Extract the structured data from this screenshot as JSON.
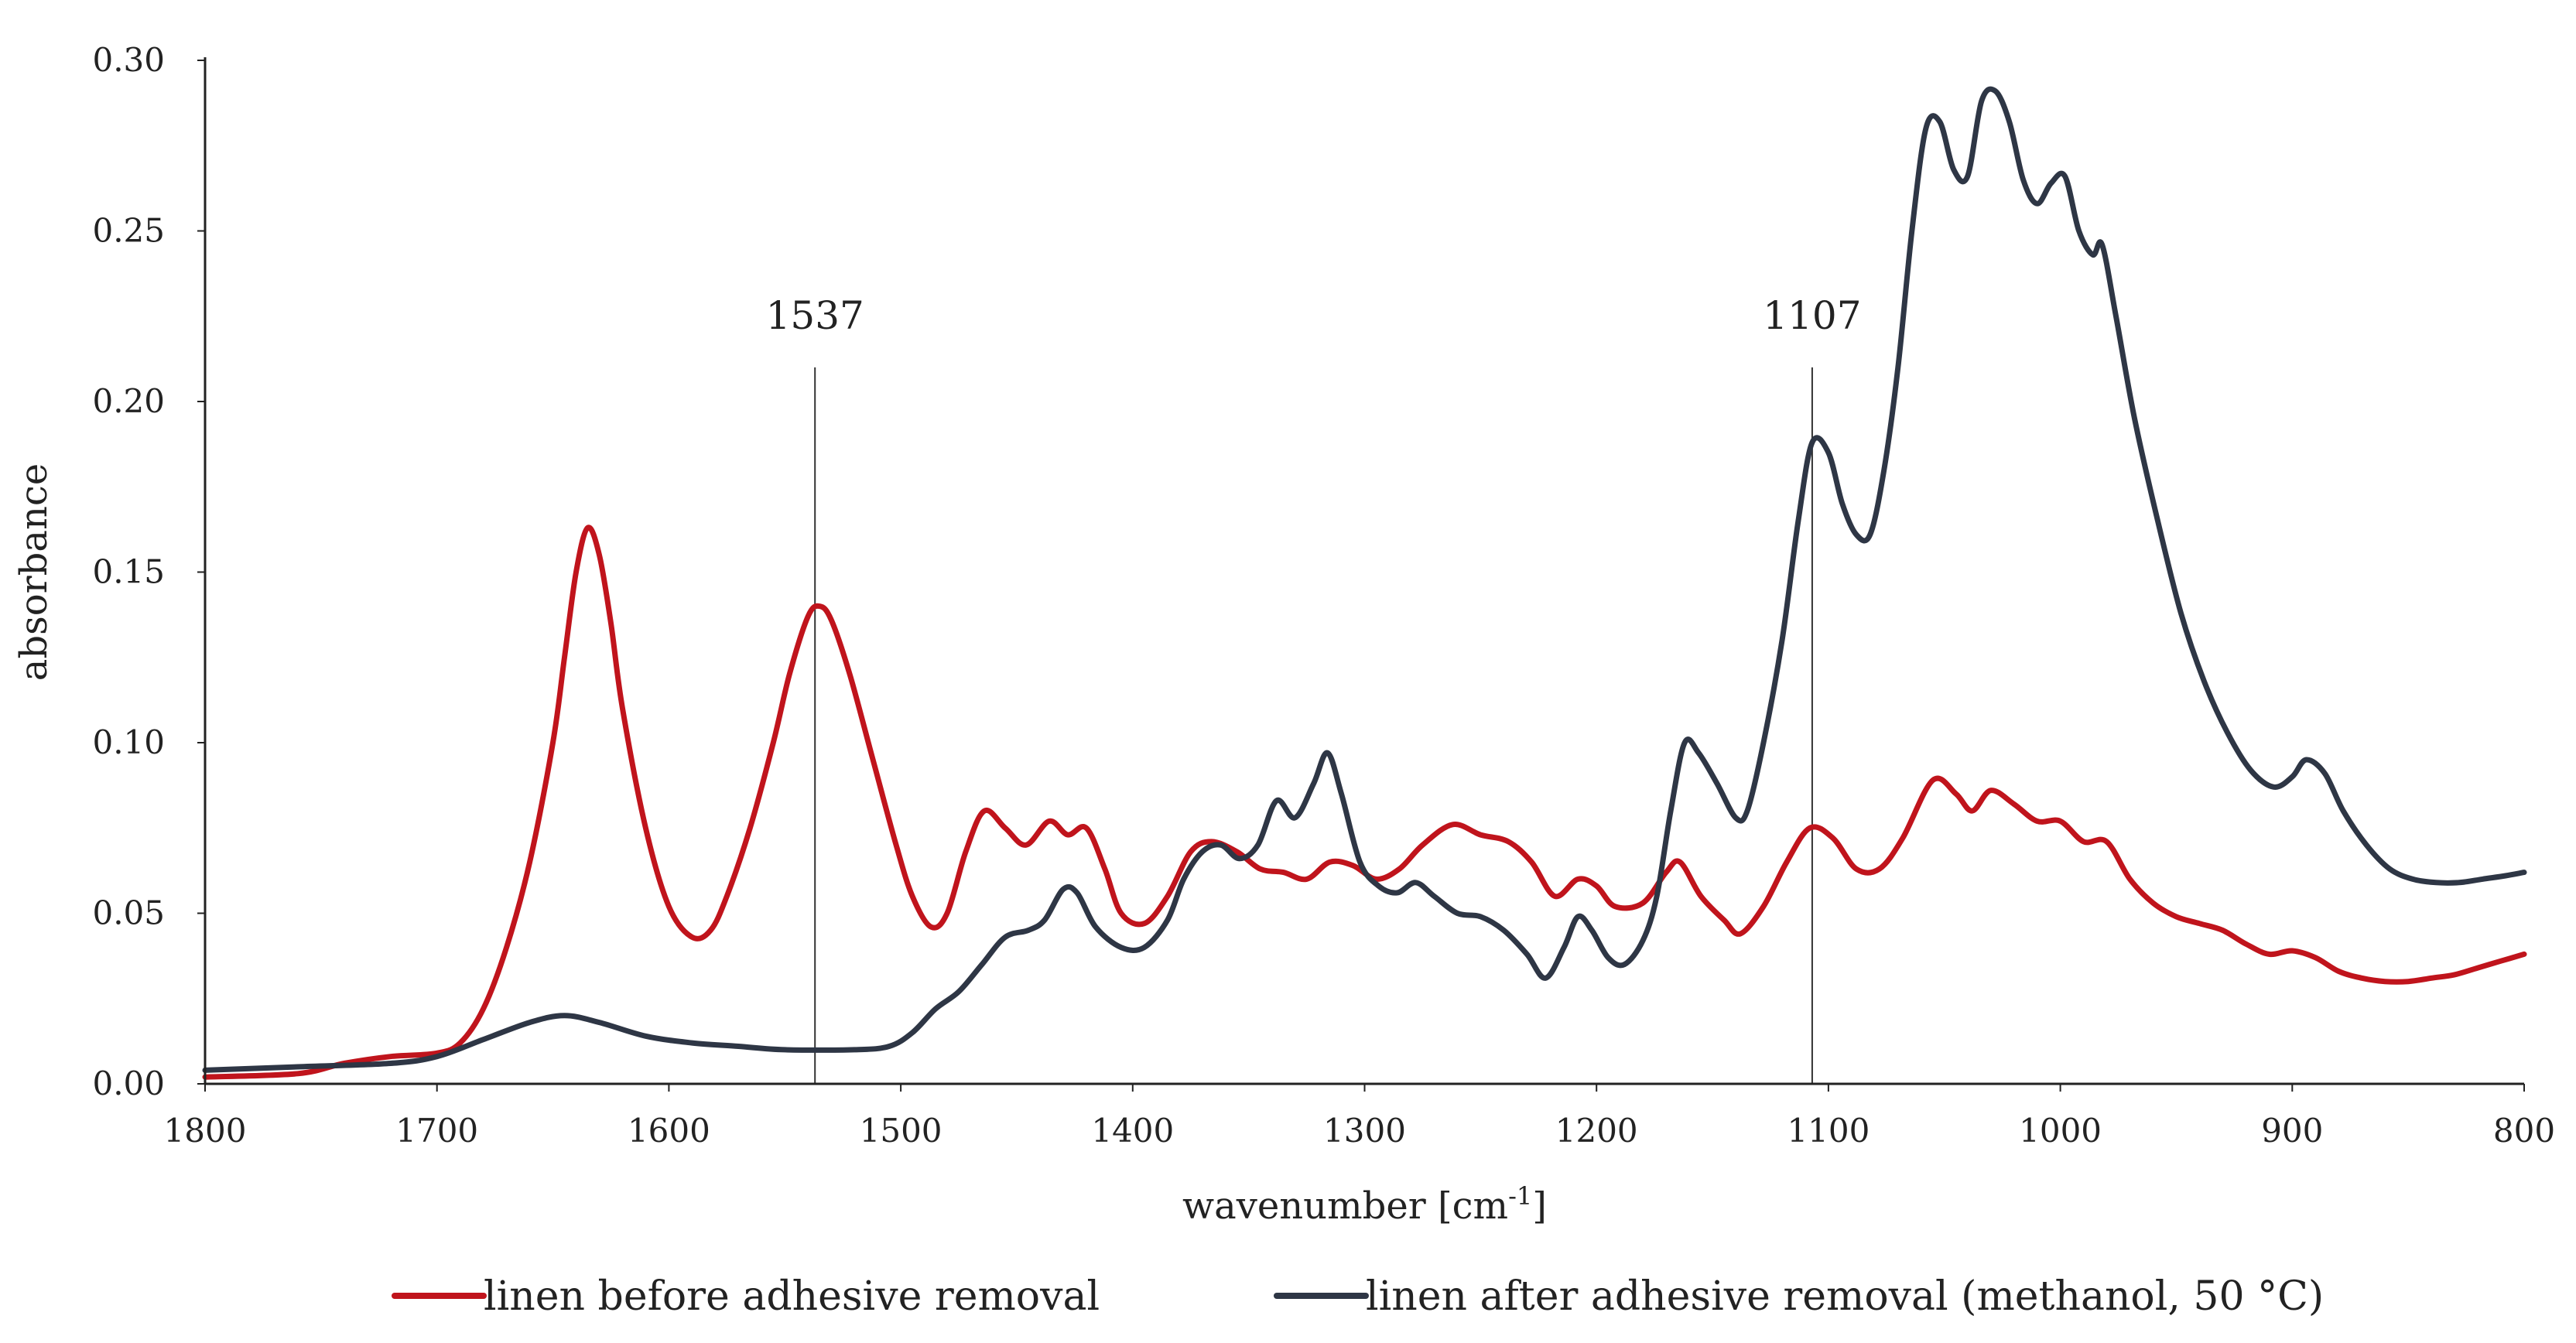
{
  "chart_data": {
    "type": "line",
    "title": "",
    "xlabel": "wavenumber [cm",
    "xlabel_sup": "-1",
    "xlabel_close": "]",
    "ylabel": "absorbance",
    "xlim": [
      1800,
      800
    ],
    "x_reversed": true,
    "ylim": [
      0,
      0.3
    ],
    "grid": false,
    "legend_position": "bottom",
    "xticks": [
      1800,
      1700,
      1600,
      1500,
      1400,
      1300,
      1200,
      1100,
      1000,
      900,
      800
    ],
    "xtick_labels": [
      "1800",
      "1700",
      "1600",
      "1500",
      "1400",
      "1300",
      "1200",
      "1100",
      "1000",
      "900",
      "800"
    ],
    "yticks": [
      0,
      0.05,
      0.1,
      0.15,
      0.2,
      0.25,
      0.3
    ],
    "ytick_labels": [
      "0.00",
      "0.05",
      "0.10",
      "0.15",
      "0.20",
      "0.25",
      "0.30"
    ],
    "annotations": [
      {
        "x": 1537,
        "label": "1537",
        "y_top": 0.21
      },
      {
        "x": 1107,
        "label": "1107",
        "y_top": 0.21
      }
    ],
    "series": [
      {
        "name": "linen before adhesive removal",
        "color": "#c0141c",
        "points": [
          [
            1800,
            0.002
          ],
          [
            1760,
            0.003
          ],
          [
            1740,
            0.006
          ],
          [
            1720,
            0.008
          ],
          [
            1700,
            0.009
          ],
          [
            1690,
            0.012
          ],
          [
            1680,
            0.022
          ],
          [
            1670,
            0.04
          ],
          [
            1660,
            0.065
          ],
          [
            1650,
            0.1
          ],
          [
            1645,
            0.125
          ],
          [
            1640,
            0.15
          ],
          [
            1635,
            0.163
          ],
          [
            1630,
            0.155
          ],
          [
            1625,
            0.135
          ],
          [
            1620,
            0.11
          ],
          [
            1610,
            0.075
          ],
          [
            1600,
            0.052
          ],
          [
            1590,
            0.043
          ],
          [
            1582,
            0.045
          ],
          [
            1575,
            0.055
          ],
          [
            1565,
            0.075
          ],
          [
            1555,
            0.1
          ],
          [
            1548,
            0.12
          ],
          [
            1540,
            0.137
          ],
          [
            1535,
            0.14
          ],
          [
            1530,
            0.136
          ],
          [
            1522,
            0.12
          ],
          [
            1512,
            0.095
          ],
          [
            1502,
            0.07
          ],
          [
            1495,
            0.055
          ],
          [
            1487,
            0.046
          ],
          [
            1480,
            0.05
          ],
          [
            1472,
            0.068
          ],
          [
            1464,
            0.08
          ],
          [
            1455,
            0.075
          ],
          [
            1446,
            0.07
          ],
          [
            1436,
            0.077
          ],
          [
            1428,
            0.073
          ],
          [
            1420,
            0.075
          ],
          [
            1412,
            0.063
          ],
          [
            1405,
            0.05
          ],
          [
            1395,
            0.047
          ],
          [
            1385,
            0.055
          ],
          [
            1375,
            0.068
          ],
          [
            1366,
            0.071
          ],
          [
            1355,
            0.068
          ],
          [
            1345,
            0.063
          ],
          [
            1335,
            0.062
          ],
          [
            1325,
            0.06
          ],
          [
            1315,
            0.065
          ],
          [
            1305,
            0.064
          ],
          [
            1295,
            0.06
          ],
          [
            1285,
            0.063
          ],
          [
            1275,
            0.07
          ],
          [
            1262,
            0.076
          ],
          [
            1250,
            0.073
          ],
          [
            1238,
            0.071
          ],
          [
            1228,
            0.065
          ],
          [
            1218,
            0.055
          ],
          [
            1208,
            0.06
          ],
          [
            1200,
            0.058
          ],
          [
            1192,
            0.052
          ],
          [
            1180,
            0.053
          ],
          [
            1170,
            0.062
          ],
          [
            1164,
            0.065
          ],
          [
            1155,
            0.055
          ],
          [
            1145,
            0.048
          ],
          [
            1138,
            0.044
          ],
          [
            1128,
            0.052
          ],
          [
            1118,
            0.065
          ],
          [
            1108,
            0.075
          ],
          [
            1098,
            0.072
          ],
          [
            1088,
            0.063
          ],
          [
            1078,
            0.063
          ],
          [
            1068,
            0.072
          ],
          [
            1055,
            0.089
          ],
          [
            1045,
            0.085
          ],
          [
            1038,
            0.08
          ],
          [
            1030,
            0.086
          ],
          [
            1020,
            0.082
          ],
          [
            1010,
            0.077
          ],
          [
            1000,
            0.077
          ],
          [
            990,
            0.071
          ],
          [
            980,
            0.071
          ],
          [
            970,
            0.06
          ],
          [
            960,
            0.053
          ],
          [
            950,
            0.049
          ],
          [
            940,
            0.047
          ],
          [
            930,
            0.045
          ],
          [
            920,
            0.041
          ],
          [
            910,
            0.038
          ],
          [
            900,
            0.039
          ],
          [
            890,
            0.037
          ],
          [
            880,
            0.033
          ],
          [
            870,
            0.031
          ],
          [
            860,
            0.03
          ],
          [
            850,
            0.03
          ],
          [
            840,
            0.031
          ],
          [
            830,
            0.032
          ],
          [
            820,
            0.034
          ],
          [
            810,
            0.036
          ],
          [
            800,
            0.038
          ]
        ]
      },
      {
        "name": "linen after adhesive removal (methanol, 50 °C)",
        "color": "#2e3645",
        "points": [
          [
            1800,
            0.004
          ],
          [
            1760,
            0.005
          ],
          [
            1720,
            0.006
          ],
          [
            1700,
            0.008
          ],
          [
            1680,
            0.013
          ],
          [
            1660,
            0.018
          ],
          [
            1645,
            0.02
          ],
          [
            1630,
            0.018
          ],
          [
            1610,
            0.014
          ],
          [
            1590,
            0.012
          ],
          [
            1570,
            0.011
          ],
          [
            1550,
            0.01
          ],
          [
            1520,
            0.01
          ],
          [
            1505,
            0.011
          ],
          [
            1495,
            0.015
          ],
          [
            1485,
            0.022
          ],
          [
            1475,
            0.027
          ],
          [
            1465,
            0.035
          ],
          [
            1455,
            0.043
          ],
          [
            1445,
            0.045
          ],
          [
            1438,
            0.048
          ],
          [
            1430,
            0.057
          ],
          [
            1424,
            0.056
          ],
          [
            1416,
            0.046
          ],
          [
            1405,
            0.04
          ],
          [
            1395,
            0.04
          ],
          [
            1385,
            0.048
          ],
          [
            1378,
            0.06
          ],
          [
            1370,
            0.068
          ],
          [
            1362,
            0.07
          ],
          [
            1354,
            0.066
          ],
          [
            1346,
            0.07
          ],
          [
            1338,
            0.083
          ],
          [
            1330,
            0.078
          ],
          [
            1322,
            0.088
          ],
          [
            1316,
            0.097
          ],
          [
            1310,
            0.085
          ],
          [
            1302,
            0.065
          ],
          [
            1294,
            0.058
          ],
          [
            1286,
            0.056
          ],
          [
            1278,
            0.059
          ],
          [
            1270,
            0.055
          ],
          [
            1260,
            0.05
          ],
          [
            1250,
            0.049
          ],
          [
            1240,
            0.045
          ],
          [
            1230,
            0.038
          ],
          [
            1222,
            0.031
          ],
          [
            1214,
            0.04
          ],
          [
            1208,
            0.049
          ],
          [
            1202,
            0.045
          ],
          [
            1195,
            0.037
          ],
          [
            1188,
            0.035
          ],
          [
            1180,
            0.042
          ],
          [
            1174,
            0.055
          ],
          [
            1168,
            0.08
          ],
          [
            1162,
            0.1
          ],
          [
            1156,
            0.097
          ],
          [
            1148,
            0.088
          ],
          [
            1140,
            0.078
          ],
          [
            1135,
            0.08
          ],
          [
            1128,
            0.1
          ],
          [
            1120,
            0.13
          ],
          [
            1113,
            0.165
          ],
          [
            1107,
            0.188
          ],
          [
            1100,
            0.185
          ],
          [
            1094,
            0.17
          ],
          [
            1088,
            0.161
          ],
          [
            1082,
            0.161
          ],
          [
            1076,
            0.18
          ],
          [
            1070,
            0.21
          ],
          [
            1064,
            0.25
          ],
          [
            1058,
            0.28
          ],
          [
            1052,
            0.282
          ],
          [
            1046,
            0.268
          ],
          [
            1040,
            0.266
          ],
          [
            1034,
            0.288
          ],
          [
            1028,
            0.291
          ],
          [
            1022,
            0.282
          ],
          [
            1016,
            0.265
          ],
          [
            1010,
            0.258
          ],
          [
            1004,
            0.264
          ],
          [
            998,
            0.266
          ],
          [
            992,
            0.25
          ],
          [
            986,
            0.243
          ],
          [
            982,
            0.246
          ],
          [
            976,
            0.225
          ],
          [
            968,
            0.195
          ],
          [
            958,
            0.165
          ],
          [
            948,
            0.138
          ],
          [
            938,
            0.118
          ],
          [
            928,
            0.103
          ],
          [
            918,
            0.092
          ],
          [
            908,
            0.087
          ],
          [
            900,
            0.09
          ],
          [
            894,
            0.095
          ],
          [
            886,
            0.091
          ],
          [
            878,
            0.08
          ],
          [
            868,
            0.07
          ],
          [
            858,
            0.063
          ],
          [
            848,
            0.06
          ],
          [
            838,
            0.059
          ],
          [
            828,
            0.059
          ],
          [
            818,
            0.06
          ],
          [
            808,
            0.061
          ],
          [
            800,
            0.062
          ]
        ]
      }
    ]
  }
}
